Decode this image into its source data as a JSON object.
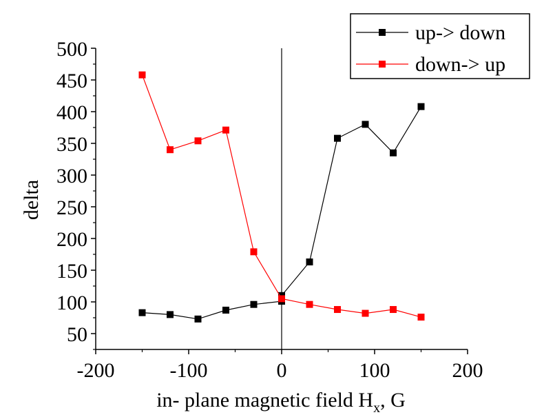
{
  "chart_data": {
    "type": "line",
    "xlabel": "in- plane magnetic field H",
    "xlabel_sub": "x",
    "xlabel_suffix": ", G",
    "ylabel": "delta",
    "xlim": [
      -200,
      200
    ],
    "ylim": [
      25,
      500
    ],
    "x_ticks": [
      -200,
      -100,
      0,
      100,
      200
    ],
    "x_tick_labels": [
      "-200",
      "-100",
      "0",
      "100",
      "200"
    ],
    "y_ticks": [
      50,
      100,
      150,
      200,
      250,
      300,
      350,
      400,
      450,
      500
    ],
    "y_tick_labels": [
      "50",
      "100",
      "150",
      "200",
      "250",
      "300",
      "350",
      "400",
      "450",
      "500"
    ],
    "grid": false,
    "vertical_line_at_x": 0,
    "legend_position": "top-right",
    "series": [
      {
        "name": "up-> down",
        "color": "#000000",
        "marker": "square",
        "x": [
          -150,
          -120,
          -90,
          -60,
          -30,
          0,
          0,
          30,
          60,
          90,
          120,
          150
        ],
        "y": [
          83,
          80,
          73,
          87,
          96,
          101,
          110,
          163,
          358,
          380,
          335,
          408
        ]
      },
      {
        "name": "down-> up",
        "color": "#ff0000",
        "marker": "square",
        "x": [
          -150,
          -120,
          -90,
          -60,
          -30,
          0,
          30,
          60,
          90,
          120,
          150
        ],
        "y": [
          458,
          340,
          354,
          371,
          179,
          105,
          96,
          88,
          82,
          88,
          76
        ]
      }
    ]
  }
}
